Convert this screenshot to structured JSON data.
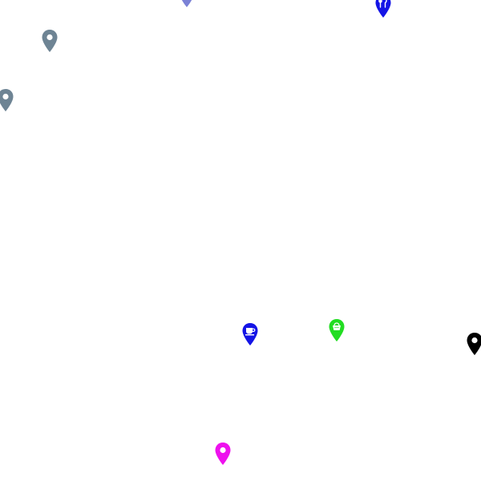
{
  "map": {
    "markers": [
      {
        "icon": "purple-pin-icon",
        "color": "#7b82d6",
        "glyph": "dot"
      },
      {
        "icon": "restaurant-pin-icon",
        "color": "#1414e6",
        "glyph": "fork-knife"
      },
      {
        "icon": "gray-pin-icon",
        "color": "#6e8494",
        "glyph": "dot"
      },
      {
        "icon": "gray-pin-icon",
        "color": "#6e8494",
        "glyph": "dot"
      },
      {
        "icon": "cafe-pin-icon",
        "color": "#1414e6",
        "glyph": "cup"
      },
      {
        "icon": "shop-pin-icon",
        "color": "#22dd22",
        "glyph": "basket"
      },
      {
        "icon": "black-pin-icon",
        "color": "#000000",
        "glyph": "dot"
      },
      {
        "icon": "magenta-pin-icon",
        "color": "#ee11ee",
        "glyph": "dot"
      }
    ]
  }
}
